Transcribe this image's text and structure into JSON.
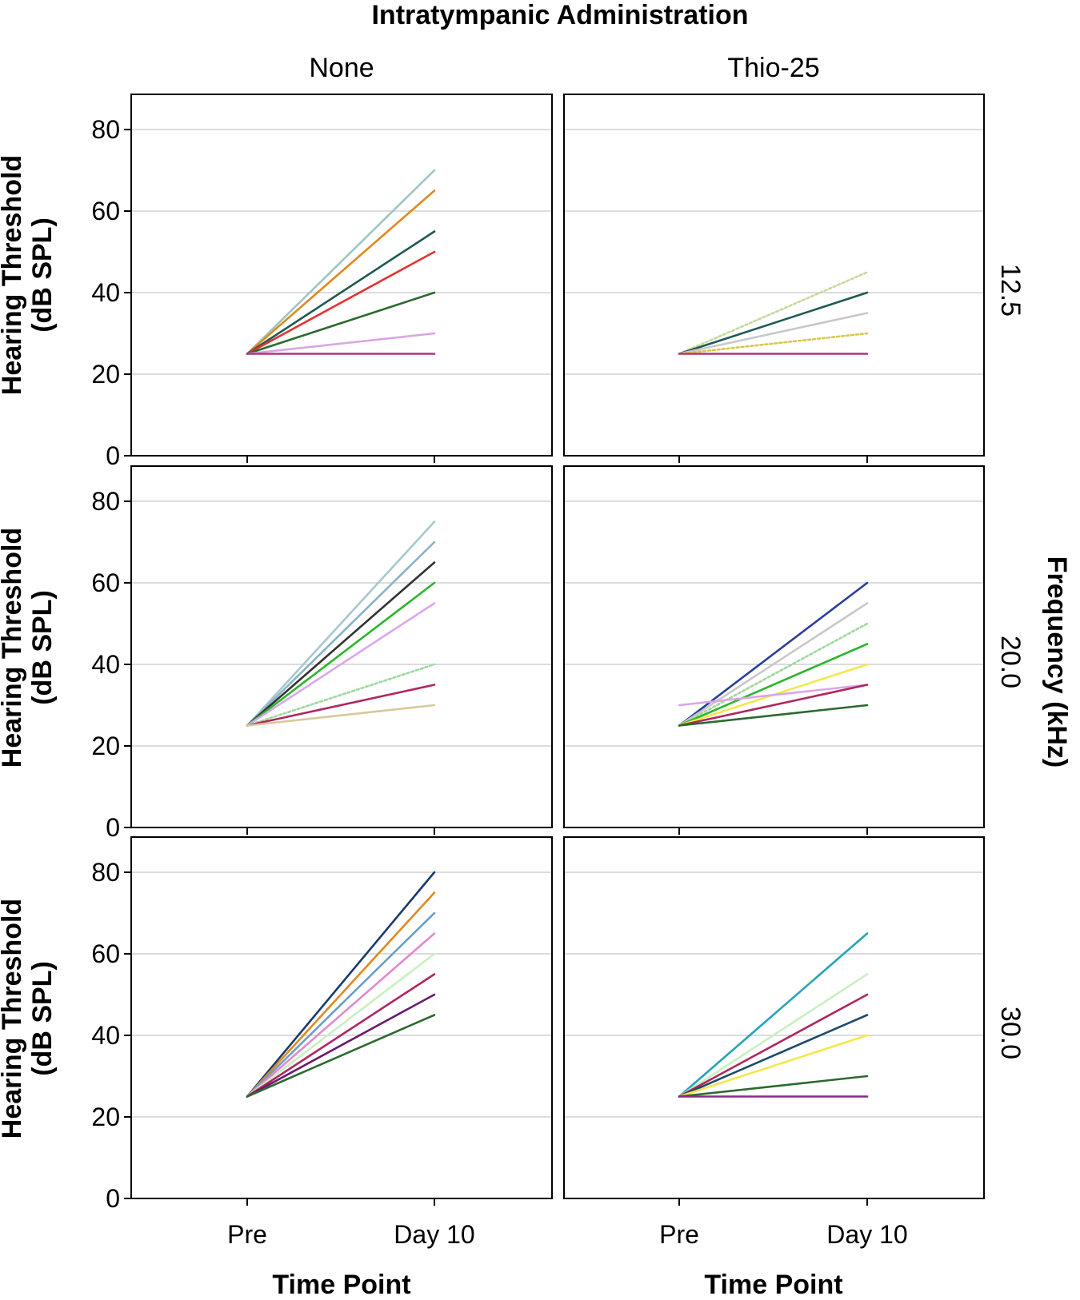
{
  "chart_data": {
    "type": "line",
    "title": "Intratympanic Administration",
    "row_strip_title": "Frequency (kHz)",
    "xlabel": "Time Point",
    "ylabel_line1": "Hearing Threshold",
    "ylabel_line2": "(dB SPL)",
    "categories": [
      "Pre",
      "Day 10"
    ],
    "ylim": [
      0,
      88
    ],
    "yticks": [
      "0",
      "20",
      "40",
      "60",
      "80"
    ],
    "ytick_values": [
      0,
      20,
      40,
      60,
      80
    ],
    "columns": [
      "None",
      "Thio-25"
    ],
    "rows": [
      "12.5",
      "20.0",
      "30.0"
    ],
    "panels": [
      {
        "column": "None",
        "row": "12.5",
        "series": [
          {
            "color": "#9fc4c7",
            "values": [
              25,
              70
            ]
          },
          {
            "color": "#e08a1e",
            "values": [
              25,
              65
            ]
          },
          {
            "color": "#1f5a52",
            "values": [
              25,
              55
            ]
          },
          {
            "color": "#e63232",
            "values": [
              25,
              50
            ]
          },
          {
            "color": "#2b6a2f",
            "values": [
              25,
              40
            ]
          },
          {
            "color": "#dba5e8",
            "values": [
              25,
              30
            ]
          },
          {
            "color": "#b0357a",
            "values": [
              25,
              25
            ]
          }
        ]
      },
      {
        "column": "Thio-25",
        "row": "12.5",
        "series": [
          {
            "color": "#c8d89a",
            "values": [
              25,
              45
            ],
            "dashed": true
          },
          {
            "color": "#1f5a52",
            "values": [
              25,
              40
            ]
          },
          {
            "color": "#c8c8c8",
            "values": [
              25,
              35
            ]
          },
          {
            "color": "#d8c84a",
            "values": [
              25,
              30
            ],
            "dashed": true
          },
          {
            "color": "#b0357a",
            "values": [
              25,
              25
            ]
          }
        ]
      },
      {
        "column": "None",
        "row": "20.0",
        "series": [
          {
            "color": "#a8c8cc",
            "values": [
              25,
              75
            ]
          },
          {
            "color": "#8ab2c4",
            "values": [
              25,
              70
            ]
          },
          {
            "color": "#333333",
            "values": [
              25,
              65
            ]
          },
          {
            "color": "#2cb52c",
            "values": [
              25,
              60
            ]
          },
          {
            "color": "#d8a8ee",
            "values": [
              25,
              55
            ]
          },
          {
            "color": "#9ed89e",
            "values": [
              25,
              40
            ],
            "dashed": true
          },
          {
            "color": "#b0265e",
            "values": [
              25,
              35
            ]
          },
          {
            "color": "#d8c89a",
            "values": [
              25,
              30
            ]
          }
        ]
      },
      {
        "column": "Thio-25",
        "row": "20.0",
        "series": [
          {
            "color": "#2a3e9e",
            "values": [
              25,
              60
            ]
          },
          {
            "color": "#c8c8c8",
            "values": [
              25,
              55
            ]
          },
          {
            "color": "#9ed89e",
            "values": [
              25,
              50
            ],
            "dashed": true
          },
          {
            "color": "#2cb52c",
            "values": [
              25,
              45
            ]
          },
          {
            "color": "#f2e84a",
            "values": [
              25,
              40
            ]
          },
          {
            "color": "#dba5e8",
            "values": [
              30,
              35
            ]
          },
          {
            "color": "#b0265e",
            "values": [
              25,
              35
            ]
          },
          {
            "color": "#2b6a2f",
            "values": [
              25,
              30
            ]
          }
        ]
      },
      {
        "column": "None",
        "row": "30.0",
        "series": [
          {
            "color": "#1c3a6e",
            "values": [
              25,
              80
            ]
          },
          {
            "color": "#e08a1e",
            "values": [
              25,
              75
            ]
          },
          {
            "color": "#6a9ec8",
            "values": [
              25,
              70
            ]
          },
          {
            "color": "#e28ad0",
            "values": [
              25,
              65
            ]
          },
          {
            "color": "#c8f0c0",
            "values": [
              25,
              60
            ]
          },
          {
            "color": "#b0265e",
            "values": [
              25,
              55
            ]
          },
          {
            "color": "#6a1a6e",
            "values": [
              25,
              50
            ]
          },
          {
            "color": "#2b6a2f",
            "values": [
              25,
              45
            ]
          }
        ]
      },
      {
        "column": "Thio-25",
        "row": "30.0",
        "series": [
          {
            "color": "#26a4b8",
            "values": [
              25,
              65
            ]
          },
          {
            "color": "#c8f0c0",
            "values": [
              25,
              55
            ]
          },
          {
            "color": "#b0265e",
            "values": [
              25,
              50
            ]
          },
          {
            "color": "#1c4a6e",
            "values": [
              25,
              45
            ]
          },
          {
            "color": "#f2e84a",
            "values": [
              25,
              40
            ]
          },
          {
            "color": "#2b6a2f",
            "values": [
              25,
              30
            ]
          },
          {
            "color": "#8a2a8a",
            "values": [
              25,
              25
            ]
          }
        ]
      }
    ]
  }
}
